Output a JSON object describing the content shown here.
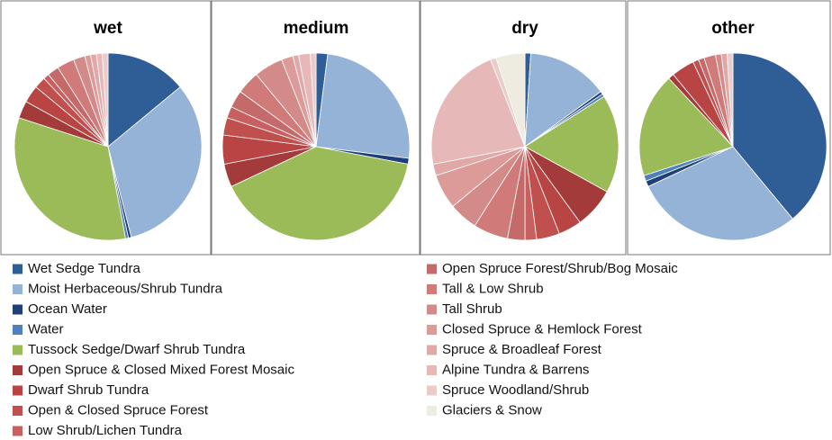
{
  "chart_data": [
    {
      "type": "pie",
      "title": "wet",
      "values": [
        14,
        32,
        0.5,
        0.5,
        33,
        3,
        3,
        2,
        1,
        2,
        3,
        2,
        1,
        1,
        1,
        1,
        0
      ]
    },
    {
      "type": "pie",
      "title": "medium",
      "values": [
        2,
        25,
        1,
        0,
        40,
        4,
        5,
        3,
        2,
        3,
        4,
        5,
        2,
        1,
        2,
        1,
        0
      ]
    },
    {
      "type": "pie",
      "title": "dry",
      "values": [
        1,
        14,
        0.5,
        0.5,
        17,
        7,
        4,
        4,
        2,
        3,
        6,
        5,
        6,
        2,
        22,
        1,
        5
      ]
    },
    {
      "type": "pie",
      "title": "other",
      "values": [
        39,
        29,
        1,
        1,
        18,
        1,
        4,
        1,
        0,
        1,
        2,
        1,
        0,
        1,
        0,
        1,
        0
      ]
    }
  ],
  "legend": {
    "categories": [
      "Wet Sedge Tundra",
      "Moist Herbaceous/Shrub Tundra",
      "Ocean Water",
      "Water",
      "Tussock Sedge/Dwarf Shrub Tundra",
      "Open Spruce & Closed Mixed Forest Mosaic",
      "Dwarf Shrub Tundra",
      "Open & Closed Spruce Forest",
      "Low Shrub/Lichen Tundra",
      "Open Spruce Forest/Shrub/Bog Mosaic",
      "Tall & Low Shrub",
      "Tall Shrub",
      "Closed Spruce & Hemlock Forest",
      "Spruce & Broadleaf Forest",
      "Alpine Tundra & Barrens",
      "Spruce Woodland/Shrub",
      "Glaciers & Snow"
    ],
    "colors": [
      "#2f5e96",
      "#95b3d7",
      "#1f3f78",
      "#4f81bd",
      "#9bbb59",
      "#a33b3b",
      "#b94444",
      "#c0504d",
      "#c96060",
      "#c46a6a",
      "#d07a79",
      "#d38b8a",
      "#dc9a99",
      "#e0a9a8",
      "#e6b9b8",
      "#eccbcb",
      "#eeece1"
    ]
  }
}
